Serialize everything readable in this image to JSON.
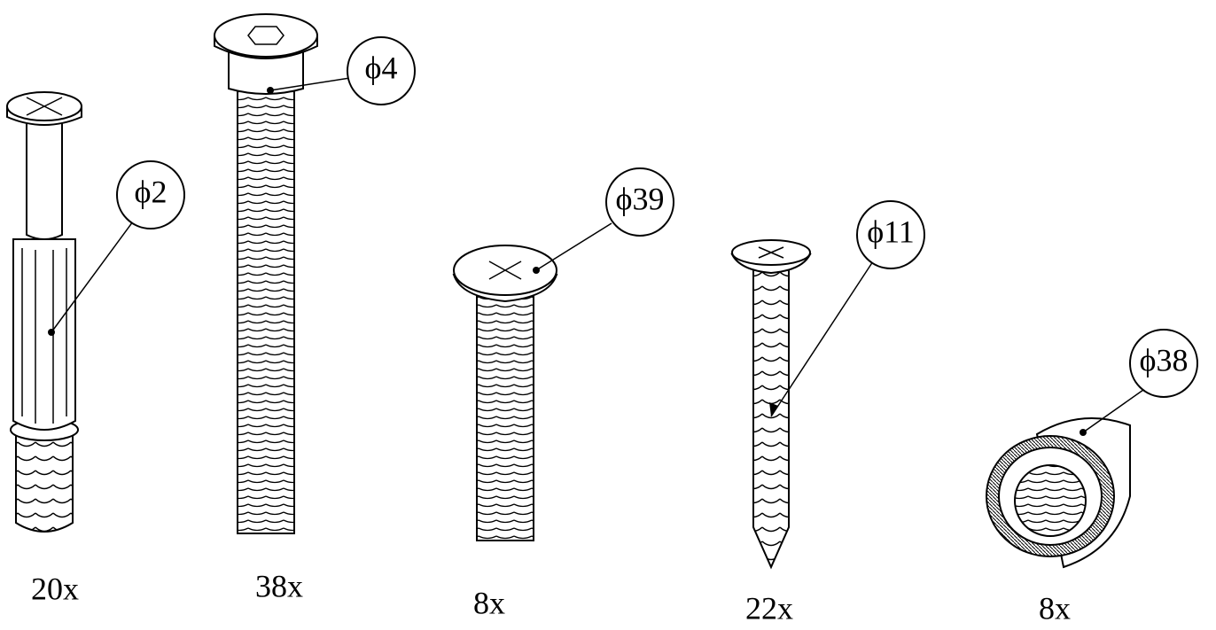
{
  "parts": [
    {
      "callout": "ϕ2",
      "quantity": "20x"
    },
    {
      "callout": "ϕ4",
      "quantity": "38x"
    },
    {
      "callout": "ϕ39",
      "quantity": "8x"
    },
    {
      "callout": "ϕ11",
      "quantity": "22x"
    },
    {
      "callout": "ϕ38",
      "quantity": "8x"
    }
  ]
}
